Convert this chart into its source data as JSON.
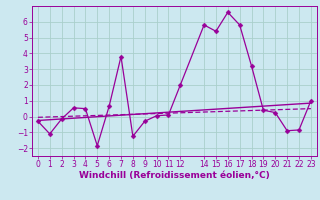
{
  "title": "",
  "xlabel": "Windchill (Refroidissement éolien,°C)",
  "ylabel": "",
  "background_color": "#cce8f0",
  "grid_color": "#aacfcc",
  "line_color": "#990099",
  "x_values": [
    0,
    1,
    2,
    3,
    4,
    5,
    6,
    7,
    8,
    9,
    10,
    11,
    12,
    14,
    15,
    16,
    17,
    18,
    19,
    20,
    21,
    22,
    23
  ],
  "y_values": [
    -0.3,
    -1.1,
    -0.15,
    0.55,
    0.5,
    -1.85,
    0.65,
    3.8,
    -1.25,
    -0.3,
    0.05,
    0.1,
    2.0,
    5.8,
    5.4,
    6.6,
    5.8,
    3.2,
    0.4,
    0.25,
    -0.9,
    -0.85,
    1.0
  ],
  "trend1_x": [
    0,
    23
  ],
  "trend1_y": [
    -0.25,
    0.85
  ],
  "trend2_x": [
    0,
    23
  ],
  "trend2_y": [
    -0.05,
    0.5
  ],
  "ylim": [
    -2.5,
    7.0
  ],
  "xlim": [
    -0.5,
    23.5
  ],
  "yticks": [
    -2,
    -1,
    0,
    1,
    2,
    3,
    4,
    5,
    6
  ],
  "xtick_values": [
    0,
    1,
    2,
    3,
    4,
    5,
    6,
    7,
    8,
    9,
    10,
    11,
    12,
    14,
    15,
    16,
    17,
    18,
    19,
    20,
    21,
    22,
    23
  ],
  "xtick_labels": [
    "0",
    "1",
    "2",
    "3",
    "4",
    "5",
    "6",
    "7",
    "8",
    "9",
    "10",
    "11",
    "12",
    "14",
    "15",
    "16",
    "17",
    "18",
    "19",
    "20",
    "21",
    "22",
    "23"
  ],
  "tick_fontsize": 5.5,
  "xlabel_fontsize": 6.5,
  "marker_size": 2.5,
  "linewidth": 0.9
}
